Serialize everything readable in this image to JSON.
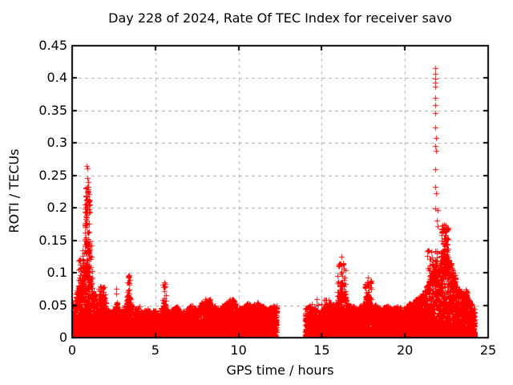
{
  "chart_data": {
    "type": "scatter",
    "title": "Day 228 of 2024, Rate Of TEC Index for receiver savo",
    "xlabel": "GPS time / hours",
    "ylabel": "ROTI / TECUs",
    "xlim": [
      0,
      25
    ],
    "ylim": [
      0,
      0.45
    ],
    "xticks": [
      0,
      5,
      10,
      15,
      20,
      25
    ],
    "yticks": [
      0,
      0.05,
      0.1,
      0.15,
      0.2,
      0.25,
      0.3,
      0.35,
      0.4,
      0.45
    ],
    "grid": true,
    "legend": "none",
    "marker": {
      "shape": "plus",
      "size": 7,
      "color": "#ff0000"
    },
    "style": {
      "grid_color": "#ababab",
      "border_color": "#000000",
      "text_color": "#000000",
      "background": "#ffffff"
    },
    "data_gap_hours": [
      12.3,
      14.0
    ],
    "band_segments": [
      {
        "envelope": [
          [
            0.03,
            0.055
          ],
          [
            0.2,
            0.06
          ],
          [
            0.35,
            0.08
          ],
          [
            0.5,
            0.09
          ],
          [
            0.7,
            0.1
          ],
          [
            0.9,
            0.105
          ],
          [
            1.1,
            0.09
          ],
          [
            1.3,
            0.075
          ],
          [
            1.5,
            0.06
          ],
          [
            1.7,
            0.07
          ],
          [
            1.9,
            0.065
          ],
          [
            2.1,
            0.05
          ],
          [
            2.3,
            0.04
          ],
          [
            2.5,
            0.045
          ],
          [
            2.7,
            0.055
          ],
          [
            2.9,
            0.04
          ],
          [
            3.1,
            0.045
          ],
          [
            3.35,
            0.075
          ],
          [
            3.45,
            0.065
          ],
          [
            3.6,
            0.05
          ],
          [
            3.8,
            0.045
          ],
          [
            4.0,
            0.05
          ],
          [
            4.2,
            0.04
          ],
          [
            4.5,
            0.045
          ],
          [
            4.8,
            0.04
          ],
          [
            5.0,
            0.045
          ],
          [
            5.2,
            0.04
          ],
          [
            5.5,
            0.055
          ],
          [
            5.8,
            0.04
          ],
          [
            6.0,
            0.045
          ],
          [
            6.3,
            0.05
          ],
          [
            6.6,
            0.04
          ],
          [
            6.9,
            0.045
          ],
          [
            7.2,
            0.05
          ],
          [
            7.5,
            0.045
          ],
          [
            7.8,
            0.055
          ],
          [
            8.0,
            0.05
          ],
          [
            8.2,
            0.06
          ],
          [
            8.5,
            0.05
          ],
          [
            8.8,
            0.045
          ],
          [
            9.0,
            0.05
          ],
          [
            9.3,
            0.055
          ],
          [
            9.6,
            0.06
          ],
          [
            9.9,
            0.05
          ],
          [
            10.2,
            0.045
          ],
          [
            10.5,
            0.055
          ],
          [
            10.8,
            0.05
          ],
          [
            11.1,
            0.055
          ],
          [
            11.4,
            0.05
          ],
          [
            11.7,
            0.045
          ],
          [
            12.0,
            0.05
          ],
          [
            12.3,
            0.05
          ]
        ]
      },
      {
        "envelope": [
          [
            14.0,
            0.045
          ],
          [
            14.3,
            0.05
          ],
          [
            14.6,
            0.045
          ],
          [
            14.9,
            0.04
          ],
          [
            15.2,
            0.05
          ],
          [
            15.5,
            0.055
          ],
          [
            15.8,
            0.05
          ],
          [
            16.0,
            0.07
          ],
          [
            16.15,
            0.09
          ],
          [
            16.3,
            0.08
          ],
          [
            16.5,
            0.055
          ],
          [
            16.8,
            0.05
          ],
          [
            17.1,
            0.045
          ],
          [
            17.4,
            0.05
          ],
          [
            17.7,
            0.065
          ],
          [
            17.85,
            0.07
          ],
          [
            18.0,
            0.055
          ],
          [
            18.3,
            0.05
          ],
          [
            18.6,
            0.045
          ],
          [
            18.9,
            0.05
          ],
          [
            19.2,
            0.045
          ],
          [
            19.5,
            0.05
          ],
          [
            19.8,
            0.045
          ],
          [
            20.1,
            0.05
          ],
          [
            20.4,
            0.055
          ],
          [
            20.7,
            0.06
          ],
          [
            21.0,
            0.065
          ],
          [
            21.2,
            0.075
          ],
          [
            21.4,
            0.085
          ],
          [
            21.6,
            0.1
          ],
          [
            21.8,
            0.12
          ],
          [
            22.0,
            0.115
          ],
          [
            22.2,
            0.13
          ],
          [
            22.35,
            0.155
          ],
          [
            22.5,
            0.14
          ],
          [
            22.65,
            0.12
          ],
          [
            22.8,
            0.115
          ],
          [
            22.95,
            0.1
          ],
          [
            23.1,
            0.08
          ],
          [
            23.3,
            0.075
          ],
          [
            23.5,
            0.07
          ],
          [
            23.7,
            0.075
          ],
          [
            23.9,
            0.06
          ],
          [
            24.05,
            0.05
          ],
          [
            24.2,
            0.045
          ]
        ]
      }
    ],
    "clusters": [
      {
        "t0": 0.6,
        "t1": 1.2,
        "v0": 0.09,
        "v1": 0.145,
        "n": 55
      },
      {
        "t0": 0.75,
        "t1": 1.08,
        "v0": 0.13,
        "v1": 0.235,
        "n": 85
      },
      {
        "t0": 0.35,
        "t1": 0.7,
        "v0": 0.065,
        "v1": 0.12,
        "n": 35
      },
      {
        "t0": 1.55,
        "t1": 2.0,
        "v0": 0.055,
        "v1": 0.08,
        "n": 25
      },
      {
        "t0": 3.3,
        "t1": 3.5,
        "v0": 0.05,
        "v1": 0.105,
        "n": 22
      },
      {
        "t0": 5.45,
        "t1": 5.65,
        "v0": 0.05,
        "v1": 0.083,
        "n": 12
      },
      {
        "t0": 7.9,
        "t1": 8.4,
        "v0": 0.045,
        "v1": 0.06,
        "n": 15
      },
      {
        "t0": 9.4,
        "t1": 9.8,
        "v0": 0.045,
        "v1": 0.06,
        "n": 12
      },
      {
        "t0": 14.3,
        "t1": 15.6,
        "v0": 0.04,
        "v1": 0.06,
        "n": 25
      },
      {
        "t0": 15.9,
        "t1": 16.45,
        "v0": 0.055,
        "v1": 0.115,
        "n": 45
      },
      {
        "t0": 17.6,
        "t1": 18.0,
        "v0": 0.05,
        "v1": 0.09,
        "n": 35
      },
      {
        "t0": 21.3,
        "t1": 22.0,
        "v0": 0.08,
        "v1": 0.135,
        "n": 60
      },
      {
        "t0": 22.15,
        "t1": 22.6,
        "v0": 0.1,
        "v1": 0.175,
        "n": 70
      },
      {
        "t0": 22.8,
        "t1": 23.05,
        "v0": 0.06,
        "v1": 0.1,
        "n": 25
      }
    ],
    "outlier_points": [
      [
        21.82,
        0.415
      ],
      [
        21.83,
        0.407
      ],
      [
        21.82,
        0.399
      ],
      [
        21.84,
        0.393
      ],
      [
        21.83,
        0.387
      ],
      [
        21.84,
        0.37
      ],
      [
        21.82,
        0.358
      ],
      [
        21.84,
        0.346
      ],
      [
        21.83,
        0.324
      ],
      [
        21.85,
        0.308
      ],
      [
        21.83,
        0.296
      ],
      [
        21.85,
        0.288
      ],
      [
        21.84,
        0.259
      ],
      [
        21.83,
        0.232
      ],
      [
        21.85,
        0.222
      ],
      [
        21.84,
        0.199
      ],
      [
        21.96,
        0.197
      ],
      [
        21.9,
        0.18
      ],
      [
        21.97,
        0.172
      ],
      [
        0.88,
        0.265
      ],
      [
        0.92,
        0.261
      ],
      [
        0.9,
        0.246
      ],
      [
        0.95,
        0.24
      ],
      [
        16.2,
        0.125
      ],
      [
        16.26,
        0.112
      ],
      [
        17.76,
        0.093
      ],
      [
        2.65,
        0.075
      ],
      [
        2.67,
        0.068
      ],
      [
        5.52,
        0.085
      ],
      [
        5.54,
        0.078
      ],
      [
        5.53,
        0.072
      ]
    ]
  }
}
